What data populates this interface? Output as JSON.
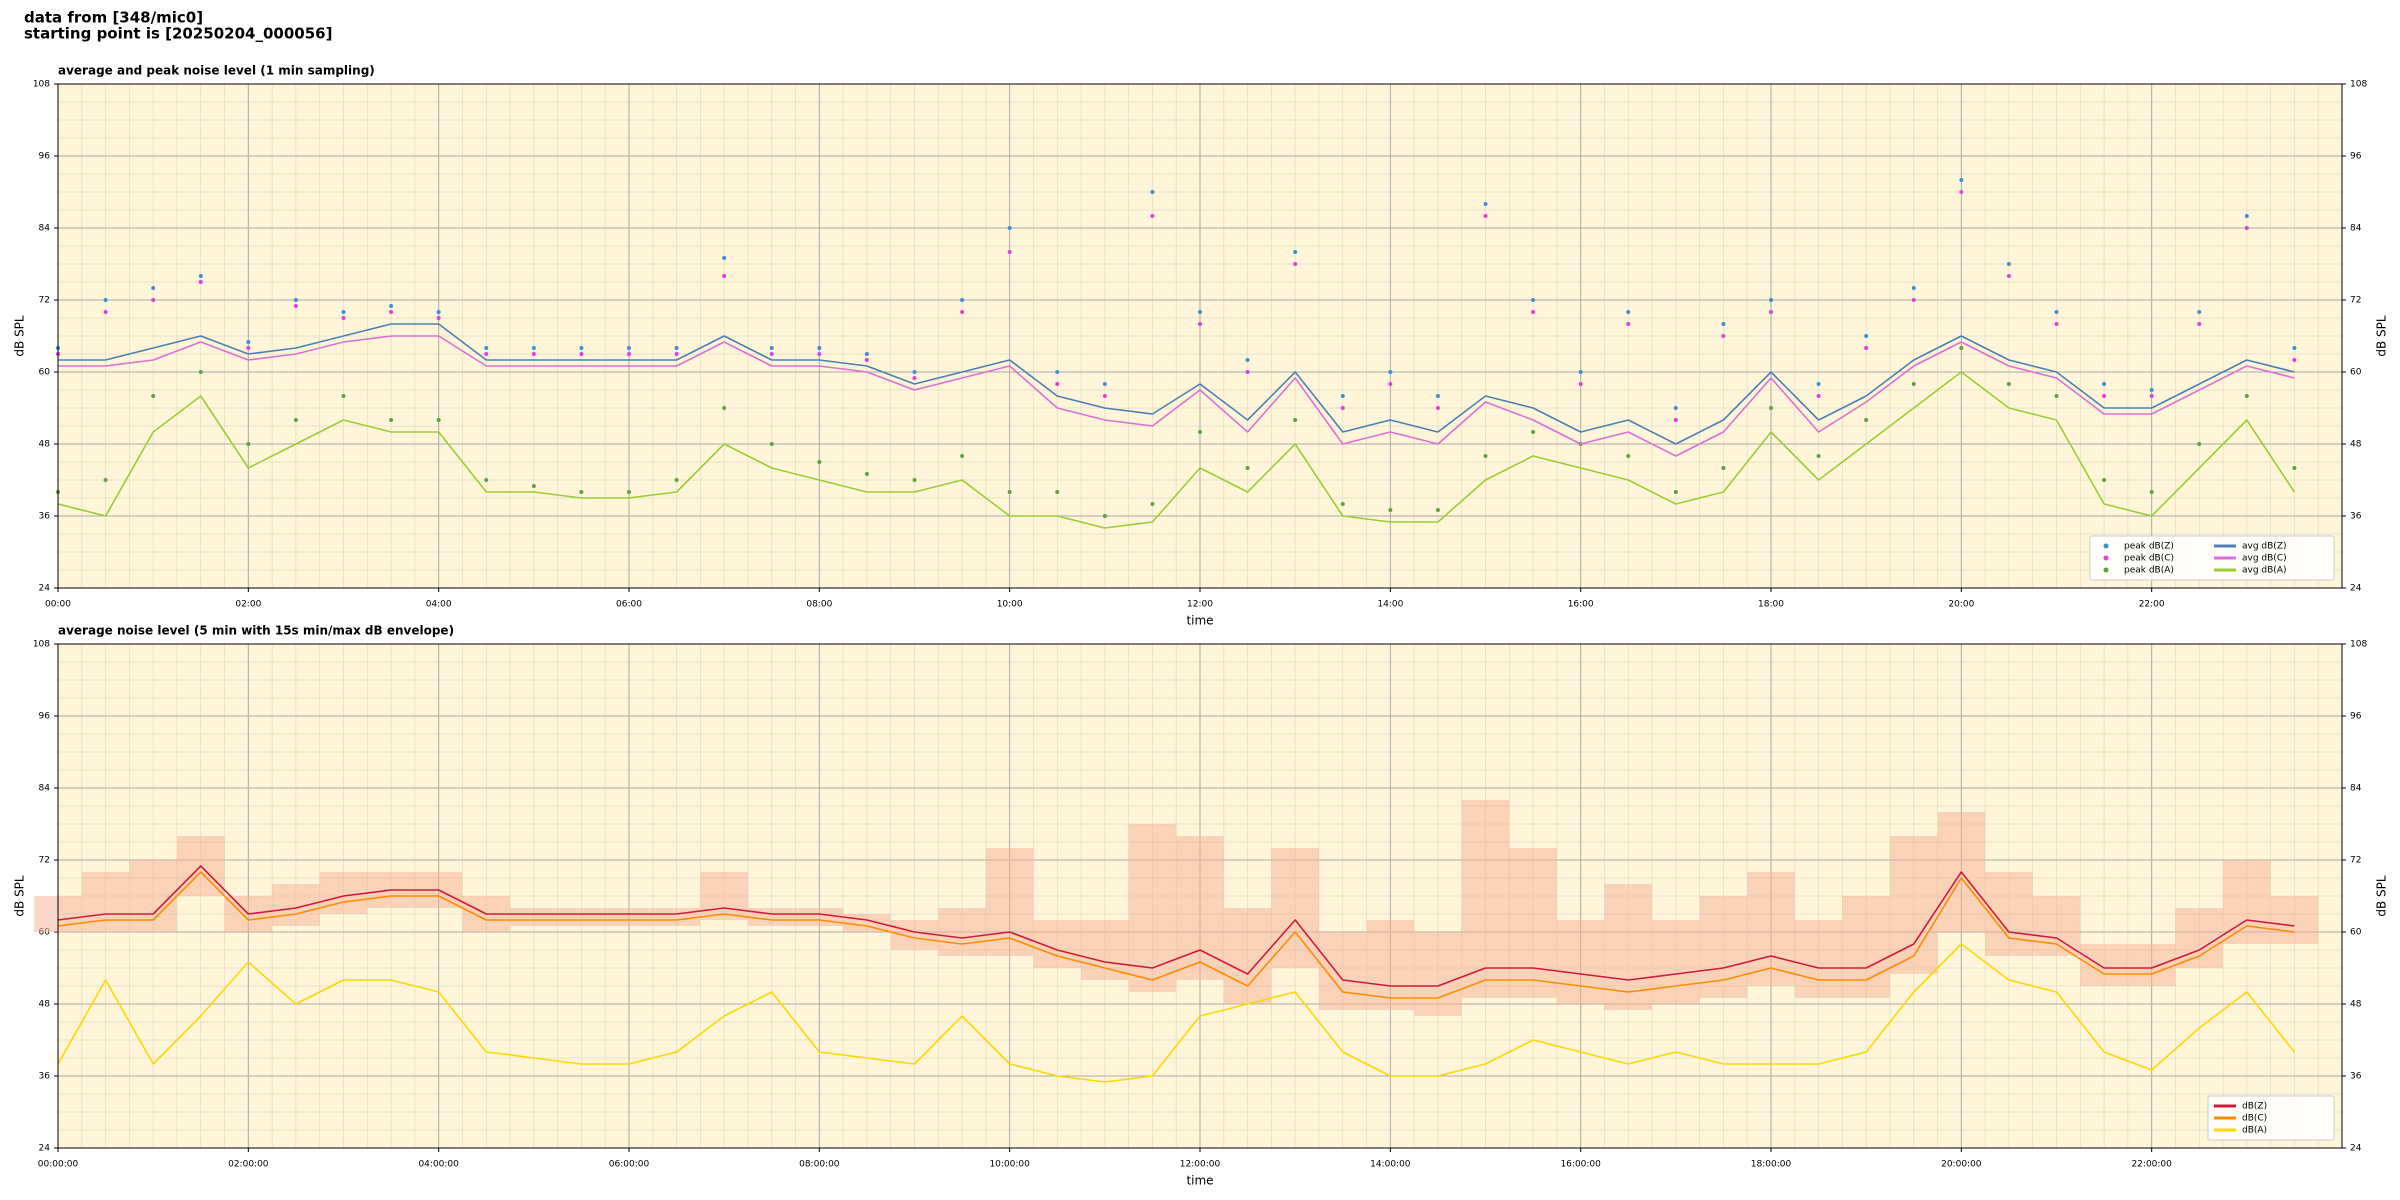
{
  "header": {
    "lines": [
      "data from [348/mic0]",
      "starting point is [20250204_000056]"
    ]
  },
  "chart_data": [
    {
      "type": "line",
      "title": "average and peak noise level (1 min sampling)",
      "xlabel": "time",
      "ylabel": "dB SPL",
      "y2label": "dB SPL",
      "x": [
        0,
        0.5,
        1,
        1.5,
        2,
        2.5,
        3,
        3.5,
        4,
        4.5,
        5,
        5.5,
        6,
        6.5,
        7,
        7.5,
        8,
        8.5,
        9,
        9.5,
        10,
        10.5,
        11,
        11.5,
        12,
        12.5,
        13,
        13.5,
        14,
        14.5,
        15,
        15.5,
        16,
        16.5,
        17,
        17.5,
        18,
        18.5,
        19,
        19.5,
        20,
        20.5,
        21,
        21.5,
        22,
        22.5,
        23,
        23.5
      ],
      "xlim": [
        0,
        24
      ],
      "xticks": [
        {
          "value": 0,
          "label": "00:00"
        },
        {
          "value": 2,
          "label": "02:00"
        },
        {
          "value": 4,
          "label": "04:00"
        },
        {
          "value": 6,
          "label": "06:00"
        },
        {
          "value": 8,
          "label": "08:00"
        },
        {
          "value": 10,
          "label": "10:00"
        },
        {
          "value": 12,
          "label": "12:00"
        },
        {
          "value": 14,
          "label": "14:00"
        },
        {
          "value": 16,
          "label": "16:00"
        },
        {
          "value": 18,
          "label": "18:00"
        },
        {
          "value": 20,
          "label": "20:00"
        },
        {
          "value": 22,
          "label": "22:00"
        }
      ],
      "ylim": [
        24,
        108
      ],
      "yticks": [
        24,
        36,
        48,
        60,
        72,
        84,
        96,
        108
      ],
      "grid": true,
      "minor_grid": true,
      "legend": "lower right",
      "legend_ncol": 2,
      "background": "#fff6d9",
      "series": [
        {
          "name": "peak dB(Z)",
          "style": "scatter",
          "color": "#3a8fd8",
          "values": [
            64,
            72,
            74,
            76,
            65,
            72,
            70,
            71,
            70,
            64,
            64,
            64,
            64,
            64,
            79,
            64,
            64,
            63,
            60,
            72,
            84,
            60,
            58,
            90,
            70,
            62,
            80,
            56,
            60,
            56,
            88,
            72,
            60,
            70,
            54,
            68,
            72,
            58,
            66,
            74,
            92,
            78,
            70,
            58,
            57,
            70,
            86,
            64
          ]
        },
        {
          "name": "peak dB(C)",
          "style": "scatter",
          "color": "#e040e0",
          "values": [
            63,
            70,
            72,
            75,
            64,
            71,
            69,
            70,
            69,
            63,
            63,
            63,
            63,
            63,
            76,
            63,
            63,
            62,
            59,
            70,
            80,
            58,
            56,
            86,
            68,
            60,
            78,
            54,
            58,
            54,
            86,
            70,
            58,
            68,
            52,
            66,
            70,
            56,
            64,
            72,
            90,
            76,
            68,
            56,
            56,
            68,
            84,
            62
          ]
        },
        {
          "name": "peak dB(A)",
          "style": "scatter",
          "color": "#5aa53c",
          "values": [
            40,
            42,
            56,
            60,
            48,
            52,
            56,
            52,
            52,
            42,
            41,
            40,
            40,
            42,
            54,
            48,
            45,
            43,
            42,
            46,
            40,
            40,
            36,
            38,
            50,
            44,
            52,
            38,
            37,
            37,
            46,
            50,
            48,
            46,
            40,
            44,
            54,
            46,
            52,
            58,
            64,
            58,
            56,
            42,
            40,
            48,
            56,
            44
          ]
        },
        {
          "name": "avg dB(Z)",
          "style": "line",
          "color": "#4a80b4",
          "values": [
            62,
            62,
            64,
            66,
            63,
            64,
            66,
            68,
            68,
            62,
            62,
            62,
            62,
            62,
            66,
            62,
            62,
            61,
            58,
            60,
            62,
            56,
            54,
            53,
            58,
            52,
            60,
            50,
            52,
            50,
            56,
            54,
            50,
            52,
            48,
            52,
            60,
            52,
            56,
            62,
            66,
            62,
            60,
            54,
            54,
            58,
            62,
            60
          ]
        },
        {
          "name": "avg dB(C)",
          "style": "line",
          "color": "#dd6fd6",
          "values": [
            61,
            61,
            62,
            65,
            62,
            63,
            65,
            66,
            66,
            61,
            61,
            61,
            61,
            61,
            65,
            61,
            61,
            60,
            57,
            59,
            61,
            54,
            52,
            51,
            57,
            50,
            59,
            48,
            50,
            48,
            55,
            52,
            48,
            50,
            46,
            50,
            59,
            50,
            55,
            61,
            65,
            61,
            59,
            53,
            53,
            57,
            61,
            59
          ]
        },
        {
          "name": "avg dB(A)",
          "style": "line",
          "color": "#9acd32",
          "values": [
            38,
            36,
            50,
            56,
            44,
            48,
            52,
            50,
            50,
            40,
            40,
            39,
            39,
            40,
            48,
            44,
            42,
            40,
            40,
            42,
            36,
            36,
            34,
            35,
            44,
            40,
            48,
            36,
            35,
            35,
            42,
            46,
            44,
            42,
            38,
            40,
            50,
            42,
            48,
            54,
            60,
            54,
            52,
            38,
            36,
            44,
            52,
            40
          ]
        }
      ]
    },
    {
      "type": "line",
      "title": "average noise level (5 min with 15s min/max dB envelope)",
      "xlabel": "time",
      "ylabel": "dB SPL",
      "y2label": "dB SPL",
      "x": [
        0,
        0.5,
        1,
        1.5,
        2,
        2.5,
        3,
        3.5,
        4,
        4.5,
        5,
        5.5,
        6,
        6.5,
        7,
        7.5,
        8,
        8.5,
        9,
        9.5,
        10,
        10.5,
        11,
        11.5,
        12,
        12.5,
        13,
        13.5,
        14,
        14.5,
        15,
        15.5,
        16,
        16.5,
        17,
        17.5,
        18,
        18.5,
        19,
        19.5,
        20,
        20.5,
        21,
        21.5,
        22,
        22.5,
        23,
        23.5
      ],
      "xlim": [
        0,
        24
      ],
      "xticks": [
        {
          "value": 0,
          "label": "00:00:00"
        },
        {
          "value": 2,
          "label": "02:00:00"
        },
        {
          "value": 4,
          "label": "04:00:00"
        },
        {
          "value": 6,
          "label": "06:00:00"
        },
        {
          "value": 8,
          "label": "08:00:00"
        },
        {
          "value": 10,
          "label": "10:00:00"
        },
        {
          "value": 12,
          "label": "12:00:00"
        },
        {
          "value": 14,
          "label": "14:00:00"
        },
        {
          "value": 16,
          "label": "16:00:00"
        },
        {
          "value": 18,
          "label": "18:00:00"
        },
        {
          "value": 20,
          "label": "20:00:00"
        },
        {
          "value": 22,
          "label": "22:00:00"
        }
      ],
      "ylim": [
        24,
        108
      ],
      "yticks": [
        24,
        36,
        48,
        60,
        72,
        84,
        96,
        108
      ],
      "grid": true,
      "minor_grid": true,
      "legend": "lower right",
      "legend_ncol": 1,
      "background": "#fff6d9",
      "envelope": {
        "color": "#f4b49a",
        "min": [
          60,
          60,
          60,
          66,
          60,
          61,
          63,
          64,
          64,
          60,
          61,
          61,
          61,
          61,
          62,
          61,
          61,
          60,
          57,
          56,
          56,
          54,
          52,
          50,
          52,
          48,
          54,
          47,
          47,
          46,
          49,
          49,
          48,
          47,
          48,
          49,
          51,
          49,
          49,
          53,
          60,
          56,
          56,
          51,
          51,
          54,
          58,
          58
        ],
        "max": [
          66,
          70,
          72,
          76,
          66,
          68,
          70,
          70,
          70,
          66,
          64,
          64,
          64,
          64,
          70,
          64,
          64,
          63,
          62,
          64,
          74,
          62,
          62,
          78,
          76,
          64,
          74,
          60,
          62,
          60,
          82,
          74,
          62,
          68,
          62,
          66,
          70,
          62,
          66,
          76,
          80,
          70,
          66,
          58,
          58,
          64,
          72,
          66
        ]
      },
      "series": [
        {
          "name": "dB(Z)",
          "style": "line",
          "color": "#d01a3c",
          "values": [
            62,
            63,
            63,
            71,
            63,
            64,
            66,
            67,
            67,
            63,
            63,
            63,
            63,
            63,
            64,
            63,
            63,
            62,
            60,
            59,
            60,
            57,
            55,
            54,
            57,
            53,
            62,
            52,
            51,
            51,
            54,
            54,
            53,
            52,
            53,
            54,
            56,
            54,
            54,
            58,
            70,
            60,
            59,
            54,
            54,
            57,
            62,
            61
          ]
        },
        {
          "name": "dB(C)",
          "style": "line",
          "color": "#ff8c00",
          "values": [
            61,
            62,
            62,
            70,
            62,
            63,
            65,
            66,
            66,
            62,
            62,
            62,
            62,
            62,
            63,
            62,
            62,
            61,
            59,
            58,
            59,
            56,
            54,
            52,
            55,
            51,
            60,
            50,
            49,
            49,
            52,
            52,
            51,
            50,
            51,
            52,
            54,
            52,
            52,
            56,
            69,
            59,
            58,
            53,
            53,
            56,
            61,
            60
          ]
        },
        {
          "name": "dB(A)",
          "style": "line",
          "color": "#ffd700",
          "values": [
            38,
            52,
            38,
            46,
            55,
            48,
            52,
            52,
            50,
            40,
            39,
            38,
            38,
            40,
            46,
            50,
            40,
            39,
            38,
            46,
            38,
            36,
            35,
            36,
            46,
            48,
            50,
            40,
            36,
            36,
            38,
            42,
            40,
            38,
            40,
            38,
            38,
            38,
            40,
            50,
            58,
            52,
            50,
            40,
            37,
            44,
            50,
            40
          ]
        }
      ]
    }
  ]
}
